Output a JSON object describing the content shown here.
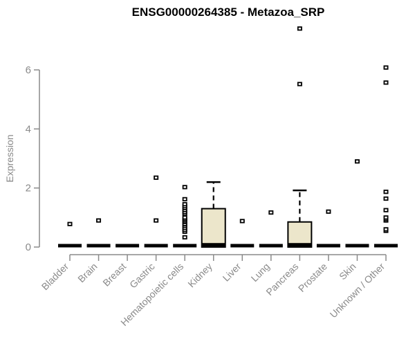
{
  "chart_data": {
    "type": "boxplot",
    "title": "ENSG00000264385 - Metazoa_SRP",
    "xlabel": "",
    "ylabel": "Expression",
    "ylim": [
      0,
      6
    ],
    "yticks": [
      "0",
      "2",
      "4",
      "6"
    ],
    "grid": false,
    "legend": false,
    "colors": {
      "box_fill": "#ece6cb",
      "box_border": "#000000",
      "median": "#000000",
      "outlier_border": "#000000",
      "outlier_fill": "#ffffff",
      "axis": "#8a8a8a",
      "tick_label": "#8a8a8a",
      "title": "#000000",
      "background": "#ffffff"
    },
    "categories": [
      "Bladder",
      "Brain",
      "Breast",
      "Gastric",
      "Hematopoietic cells",
      "Kidney",
      "Liver",
      "Lung",
      "Pancreas",
      "Prostate",
      "Skin",
      "Unknown / Other"
    ],
    "series": [
      {
        "name": "Bladder",
        "q1": 0,
        "median": 0,
        "q3": 0,
        "whisker_low": 0,
        "whisker_high": 0,
        "outliers": [
          0.78
        ]
      },
      {
        "name": "Brain",
        "q1": 0,
        "median": 0,
        "q3": 0,
        "whisker_low": 0,
        "whisker_high": 0,
        "outliers": [
          0.9
        ]
      },
      {
        "name": "Breast",
        "q1": 0,
        "median": 0,
        "q3": 0,
        "whisker_low": 0,
        "whisker_high": 0,
        "outliers": []
      },
      {
        "name": "Gastric",
        "q1": 0,
        "median": 0,
        "q3": 0,
        "whisker_low": 0,
        "whisker_high": 0,
        "outliers": [
          0.9,
          2.35
        ]
      },
      {
        "name": "Hematopoietic cells",
        "q1": 0,
        "median": 0,
        "q3": 0,
        "whisker_low": 0,
        "whisker_high": 0,
        "outliers": [
          0.33,
          0.52,
          0.58,
          0.65,
          0.72,
          0.78,
          0.85,
          0.9,
          0.95,
          1.0,
          1.12,
          1.18,
          1.25,
          1.32,
          1.38,
          1.45,
          1.62,
          2.03
        ]
      },
      {
        "name": "Kidney",
        "q1": 0,
        "median": 0.03,
        "q3": 1.3,
        "whisker_low": 0,
        "whisker_high": 2.2,
        "outliers": []
      },
      {
        "name": "Liver",
        "q1": 0,
        "median": 0,
        "q3": 0,
        "whisker_low": 0,
        "whisker_high": 0,
        "outliers": [
          0.88
        ]
      },
      {
        "name": "Lung",
        "q1": 0,
        "median": 0,
        "q3": 0,
        "whisker_low": 0,
        "whisker_high": 0,
        "outliers": [
          1.17
        ]
      },
      {
        "name": "Pancreas",
        "q1": 0,
        "median": 0.03,
        "q3": 0.85,
        "whisker_low": 0,
        "whisker_high": 1.92,
        "outliers": [
          5.52,
          7.4
        ]
      },
      {
        "name": "Prostate",
        "q1": 0,
        "median": 0,
        "q3": 0,
        "whisker_low": 0,
        "whisker_high": 0,
        "outliers": [
          1.2
        ]
      },
      {
        "name": "Skin",
        "q1": 0,
        "median": 0,
        "q3": 0,
        "whisker_low": 0,
        "whisker_high": 0,
        "outliers": [
          2.9
        ]
      },
      {
        "name": "Unknown / Other",
        "q1": 0,
        "median": 0,
        "q3": 0,
        "whisker_low": 0,
        "whisker_high": 0,
        "outliers": [
          0.55,
          0.6,
          0.9,
          0.95,
          1.0,
          1.25,
          1.64,
          1.87,
          5.57,
          6.08
        ]
      }
    ]
  }
}
